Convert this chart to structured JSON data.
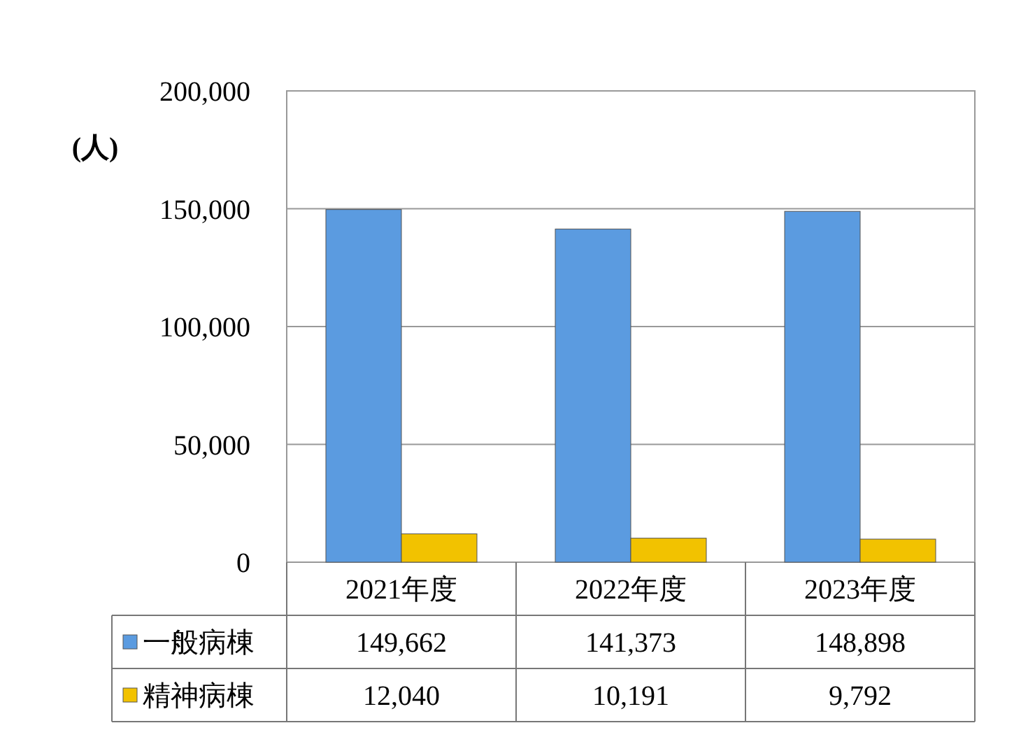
{
  "chart_data": {
    "type": "bar",
    "ylabel": "(人)",
    "categories": [
      "2021年度",
      "2022年度",
      "2023年度"
    ],
    "series": [
      {
        "name": "一般病棟",
        "color": "#5b9be0",
        "values": [
          149662,
          141373,
          148898
        ],
        "value_labels": [
          "149,662",
          "141,373",
          "148,898"
        ]
      },
      {
        "name": "精神病棟",
        "color": "#f2c200",
        "values": [
          12040,
          10191,
          9792
        ],
        "value_labels": [
          "12,040",
          "10,191",
          "9,792"
        ]
      }
    ],
    "ylim": [
      0,
      200000
    ],
    "yticks": [
      {
        "value": 0,
        "label": "0"
      },
      {
        "value": 50000,
        "label": "50,000"
      },
      {
        "value": 100000,
        "label": "100,000"
      },
      {
        "value": 150000,
        "label": "150,000"
      },
      {
        "value": 200000,
        "label": "200,000"
      }
    ],
    "grid": "y",
    "legend": "bottom"
  }
}
